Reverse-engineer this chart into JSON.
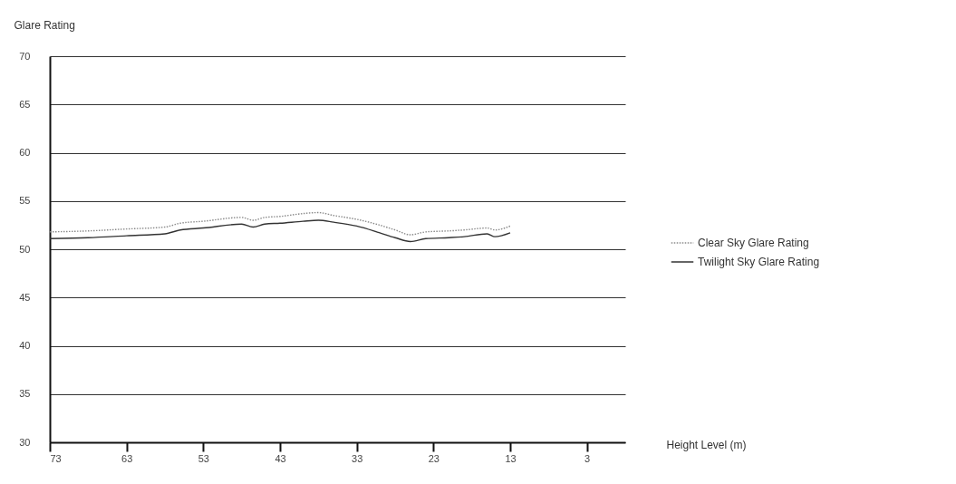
{
  "chart_data": {
    "type": "line",
    "xlabel": "Height Level (m)",
    "ylabel": "Glare Rating",
    "x": [
      73,
      68,
      63,
      58,
      56,
      53,
      48,
      46.5,
      45,
      43,
      40,
      38,
      36,
      33,
      30,
      28,
      26,
      24,
      21,
      19,
      16,
      15,
      13
    ],
    "series": [
      {
        "name": "Clear Sky Glare Rating",
        "color": "#8a8a8a",
        "line_style": "dotted",
        "values": [
          51.8,
          51.9,
          52.1,
          52.3,
          52.7,
          52.9,
          53.3,
          53.0,
          53.3,
          53.4,
          53.7,
          53.8,
          53.5,
          53.1,
          52.5,
          52.0,
          51.5,
          51.8,
          51.9,
          52.0,
          52.2,
          52.0,
          52.4
        ]
      },
      {
        "name": "Twilight Sky Glare Rating",
        "color": "#333333",
        "line_style": "solid",
        "values": [
          51.1,
          51.2,
          51.4,
          51.6,
          52.0,
          52.2,
          52.6,
          52.3,
          52.6,
          52.7,
          52.9,
          53.0,
          52.8,
          52.4,
          51.7,
          51.2,
          50.8,
          51.1,
          51.2,
          51.3,
          51.6,
          51.3,
          51.7
        ]
      }
    ],
    "xlim": [
      73,
      -2
    ],
    "xticks": [
      73,
      63,
      53,
      43,
      33,
      23,
      13,
      3
    ],
    "ylim": [
      30,
      70
    ],
    "yticks": [
      30,
      35,
      40,
      45,
      50,
      55,
      60,
      65,
      70
    ],
    "grid": "y",
    "legend": "right"
  }
}
